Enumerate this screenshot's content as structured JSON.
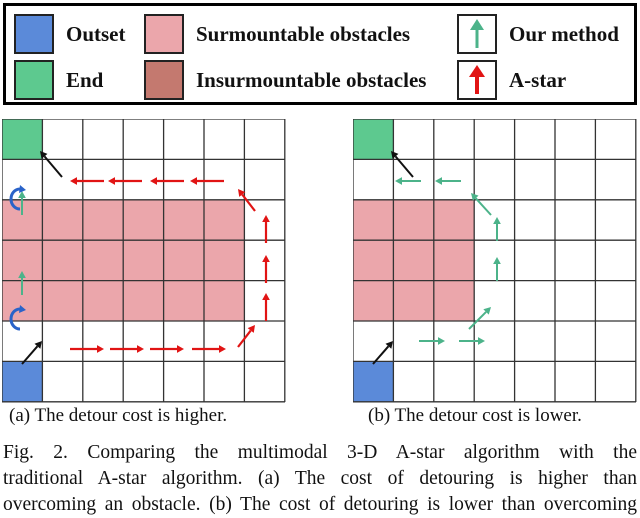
{
  "legend": {
    "outset": {
      "label": "Outset",
      "color": "#5b8ad9"
    },
    "end": {
      "label": "End",
      "color": "#5dc98f"
    },
    "surmountable": {
      "label": "Surmountable obstacles",
      "color": "#eba6ab"
    },
    "insurmountable": {
      "label": "Insurmountable obstacles",
      "color": "#c4796f"
    },
    "our_method": {
      "label": "Our method",
      "color": "#4cb38a"
    },
    "astar": {
      "label": "A-star",
      "color": "#e11414"
    }
  },
  "panels": {
    "a": {
      "subcaption": "(a) The detour cost is higher."
    },
    "b": {
      "subcaption": "(b) The detour cost is lower."
    }
  },
  "colors": {
    "turn_arc": "#2a63c9",
    "black_arrow": "#111111",
    "grid_line": "#333333"
  },
  "caption": {
    "line1": "Fig. 2.      Comparing the multimodal 3-D A-star algorithm with the",
    "line2": "traditional A-star algorithm. (a) The cost of detouring is higher than",
    "line3": "overcoming an obstacle. (b) The cost of detouring is lower than overcoming"
  }
}
